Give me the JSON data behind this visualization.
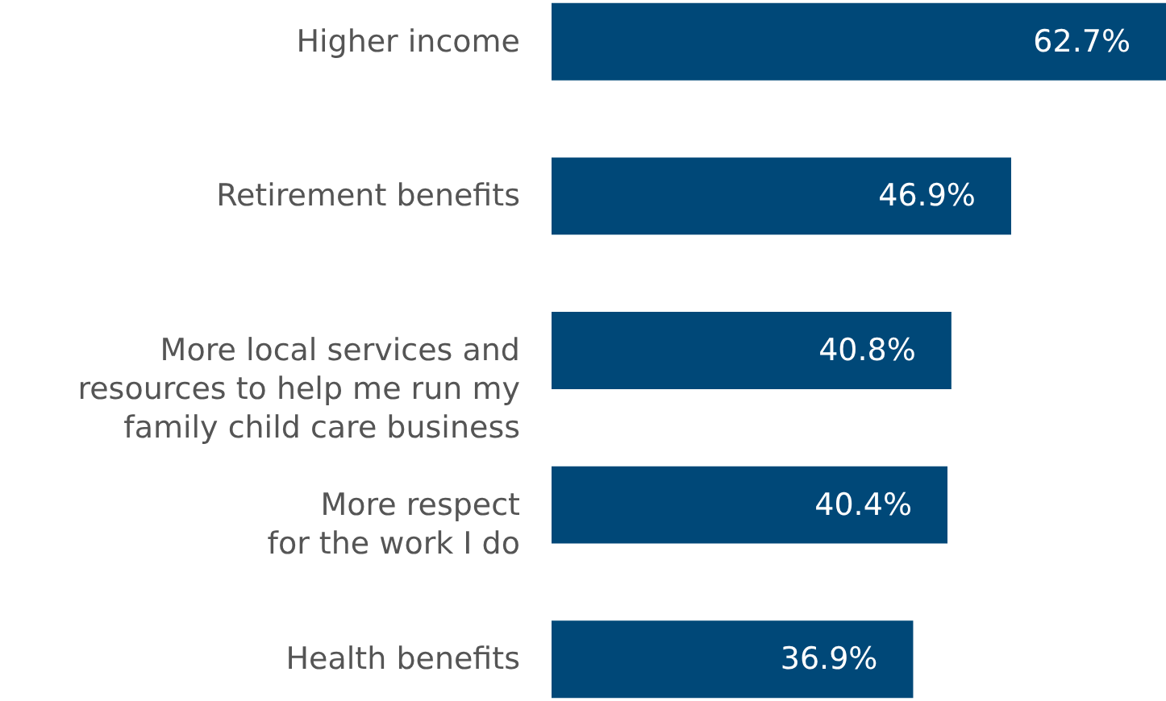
{
  "chart_data": {
    "type": "bar",
    "orientation": "horizontal",
    "categories": [
      "Higher income",
      "Retirement benefits",
      "More local services and\nresources to help me run my\nfamily child care business",
      "More respect\nfor the work I do",
      "Health benefits"
    ],
    "values": [
      62.7,
      46.9,
      40.8,
      40.4,
      36.9
    ],
    "value_labels": [
      "62.7%",
      "46.9%",
      "40.8%",
      "40.4%",
      "36.9%"
    ],
    "color": "#004878"
  }
}
